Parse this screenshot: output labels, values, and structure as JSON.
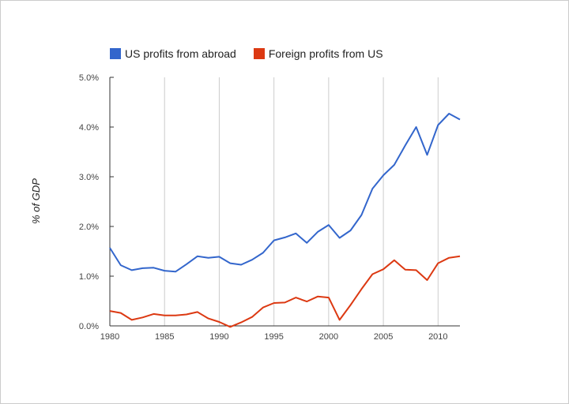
{
  "chart_data": {
    "type": "line",
    "xlabel": "",
    "ylabel": "% of GDP",
    "xlim": [
      1980,
      2012
    ],
    "ylim": [
      0,
      5
    ],
    "x_ticks": [
      1980,
      1985,
      1990,
      1995,
      2000,
      2005,
      2010
    ],
    "x_tick_labels": [
      "1980",
      "1985",
      "1990",
      "1995",
      "2000",
      "2005",
      "2010"
    ],
    "y_ticks": [
      0,
      1,
      2,
      3,
      4,
      5
    ],
    "y_tick_labels": [
      "0.0%",
      "1.0%",
      "2.0%",
      "3.0%",
      "4.0%",
      "5.0%"
    ],
    "grid": "vertical",
    "legend_position": "top",
    "x": [
      1980,
      1981,
      1982,
      1983,
      1984,
      1985,
      1986,
      1987,
      1988,
      1989,
      1990,
      1991,
      1992,
      1993,
      1994,
      1995,
      1996,
      1997,
      1998,
      1999,
      2000,
      2001,
      2002,
      2003,
      2004,
      2005,
      2006,
      2007,
      2008,
      2009,
      2010,
      2011,
      2012
    ],
    "series": [
      {
        "name": "US profits from abroad",
        "color": "#3366cc",
        "values": [
          1.57,
          1.22,
          1.12,
          1.16,
          1.17,
          1.11,
          1.09,
          1.24,
          1.4,
          1.37,
          1.39,
          1.26,
          1.23,
          1.33,
          1.47,
          1.72,
          1.78,
          1.86,
          1.67,
          1.89,
          2.03,
          1.77,
          1.92,
          2.23,
          2.76,
          3.03,
          3.24,
          3.63,
          4.0,
          3.44,
          4.04,
          4.27,
          4.15
        ]
      },
      {
        "name": "Foreign profits from US",
        "color": "#dc3912",
        "values": [
          0.3,
          0.26,
          0.12,
          0.17,
          0.24,
          0.21,
          0.21,
          0.23,
          0.28,
          0.15,
          0.08,
          -0.02,
          0.07,
          0.18,
          0.37,
          0.46,
          0.47,
          0.57,
          0.49,
          0.59,
          0.57,
          0.12,
          0.42,
          0.74,
          1.04,
          1.14,
          1.32,
          1.13,
          1.12,
          0.92,
          1.26,
          1.37,
          1.4
        ]
      }
    ]
  }
}
